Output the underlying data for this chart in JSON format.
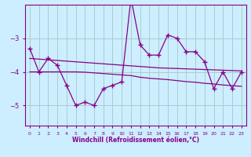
{
  "xlabel": "Windchill (Refroidissement éolien,°C)",
  "hours": [
    0,
    1,
    2,
    3,
    4,
    5,
    6,
    7,
    8,
    9,
    10,
    11,
    12,
    13,
    14,
    15,
    16,
    17,
    18,
    19,
    20,
    21,
    22,
    23
  ],
  "main_line": [
    -3.3,
    -4.0,
    -3.6,
    -3.8,
    -4.4,
    -5.0,
    -4.9,
    -5.0,
    -4.5,
    -4.4,
    -4.3,
    -1.8,
    -3.2,
    -3.5,
    -3.5,
    -2.9,
    -3.0,
    -3.4,
    -3.4,
    -3.7,
    -4.5,
    -4.0,
    -4.5,
    -4.0
  ],
  "trend_upper": [
    -3.6,
    -3.62,
    -3.64,
    -3.66,
    -3.68,
    -3.7,
    -3.72,
    -3.74,
    -3.76,
    -3.78,
    -3.8,
    -3.82,
    -3.84,
    -3.86,
    -3.88,
    -3.89,
    -3.9,
    -3.91,
    -3.92,
    -3.93,
    -3.94,
    -3.95,
    -3.96,
    -3.97
  ],
  "trend_lower": [
    -4.0,
    -4.0,
    -4.0,
    -4.0,
    -4.0,
    -4.0,
    -4.01,
    -4.03,
    -4.05,
    -4.07,
    -4.09,
    -4.11,
    -4.16,
    -4.19,
    -4.21,
    -4.23,
    -4.26,
    -4.29,
    -4.31,
    -4.34,
    -4.36,
    -4.39,
    -4.41,
    -4.43
  ],
  "line_color": "#880088",
  "bg_color": "#cceeff",
  "grid_color": "#aacccc",
  "ylim": [
    -5.6,
    -2.0
  ],
  "yticks": [
    -5,
    -4,
    -3
  ],
  "xlim": [
    -0.5,
    23.5
  ]
}
